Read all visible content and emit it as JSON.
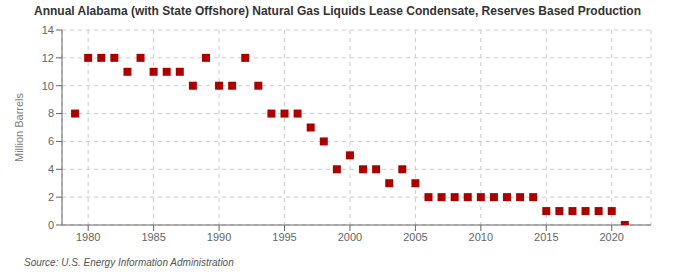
{
  "chart_data": {
    "type": "scatter",
    "title": "Annual Alabama (with State Offshore) Natural Gas Liquids Lease Condensate, Reserves Based Production",
    "ylabel": "Million Barrels",
    "annotations": [
      "Source: U.S. Energy Information Administration"
    ],
    "x": [
      1979,
      1980,
      1981,
      1982,
      1983,
      1984,
      1985,
      1986,
      1987,
      1988,
      1989,
      1990,
      1991,
      1992,
      1993,
      1994,
      1995,
      1996,
      1997,
      1998,
      1999,
      2000,
      2001,
      2002,
      2003,
      2004,
      2005,
      2006,
      2007,
      2008,
      2009,
      2010,
      2011,
      2012,
      2013,
      2014,
      2015,
      2016,
      2017,
      2018,
      2019,
      2020,
      2021
    ],
    "values": [
      8,
      12,
      12,
      12,
      11,
      12,
      11,
      11,
      11,
      10,
      12,
      10,
      10,
      12,
      10,
      8,
      8,
      8,
      7,
      6,
      4,
      5,
      4,
      4,
      3,
      4,
      3,
      2,
      2,
      2,
      2,
      2,
      2,
      2,
      2,
      2,
      1,
      1,
      1,
      1,
      1,
      1,
      0
    ],
    "color": "#aa0000",
    "marker": "square",
    "xlim": [
      1978,
      2023
    ],
    "ylim": [
      0,
      14
    ],
    "xticks": [
      1980,
      1985,
      1990,
      1995,
      2000,
      2005,
      2010,
      2015,
      2020
    ],
    "yticks": [
      0,
      2,
      4,
      6,
      8,
      10,
      12,
      14
    ],
    "grid": true
  }
}
